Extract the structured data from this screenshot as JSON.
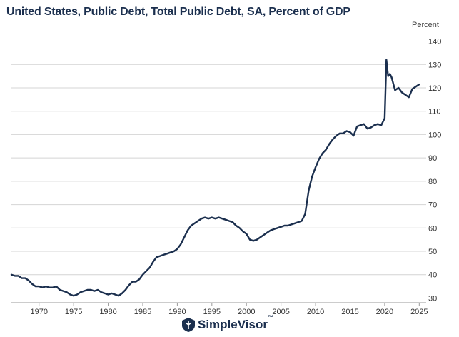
{
  "header": {
    "title": "United States, Public Debt, Total Public Debt, SA, Percent of GDP",
    "unit": "Percent"
  },
  "brand": {
    "name": "SimpleVisor",
    "trademark": "™",
    "icon": "simplevisor-logo-icon"
  },
  "colors": {
    "line": "#1b2f4e",
    "title": "#1b2f4e",
    "grid": "#d4d4d4"
  },
  "chart_data": {
    "type": "line",
    "title": "United States, Public Debt, Total Public Debt, SA, Percent of GDP",
    "ylabel": "Percent",
    "xlabel": "",
    "xlim": [
      1966,
      2026
    ],
    "ylim": [
      28,
      142
    ],
    "x_ticks": [
      1970,
      1975,
      1980,
      1985,
      1990,
      1995,
      2000,
      2005,
      2010,
      2015,
      2020,
      2025
    ],
    "y_ticks": [
      30,
      40,
      50,
      60,
      70,
      80,
      90,
      100,
      110,
      120,
      130,
      140
    ],
    "grid": true,
    "y_axis_position": "right",
    "legend": "none",
    "series": [
      {
        "x": [
          1966.0,
          1966.5,
          1967.0,
          1967.5,
          1968.0,
          1968.5,
          1969.0,
          1969.5,
          1970.0,
          1970.5,
          1971.0,
          1971.5,
          1972.0,
          1972.5,
          1973.0,
          1973.5,
          1974.0,
          1974.5,
          1975.0,
          1975.5,
          1976.0,
          1976.5,
          1977.0,
          1977.5,
          1978.0,
          1978.5,
          1979.0,
          1979.5,
          1980.0,
          1980.5,
          1981.0,
          1981.5,
          1982.0,
          1982.5,
          1983.0,
          1983.5,
          1984.0,
          1984.5,
          1985.0,
          1985.5,
          1986.0,
          1986.5,
          1987.0,
          1987.5,
          1988.0,
          1988.5,
          1989.0,
          1989.5,
          1990.0,
          1990.5,
          1991.0,
          1991.5,
          1992.0,
          1992.5,
          1993.0,
          1993.5,
          1994.0,
          1994.5,
          1995.0,
          1995.5,
          1996.0,
          1996.5,
          1997.0,
          1997.5,
          1998.0,
          1998.5,
          1999.0,
          1999.5,
          2000.0,
          2000.5,
          2001.0,
          2001.5,
          2002.0,
          2002.5,
          2003.0,
          2003.5,
          2004.0,
          2004.5,
          2005.0,
          2005.5,
          2006.0,
          2006.5,
          2007.0,
          2007.5,
          2008.0,
          2008.5,
          2009.0,
          2009.5,
          2010.0,
          2010.5,
          2011.0,
          2011.5,
          2012.0,
          2012.5,
          2013.0,
          2013.5,
          2014.0,
          2014.5,
          2015.0,
          2015.5,
          2016.0,
          2016.5,
          2017.0,
          2017.5,
          2018.0,
          2018.5,
          2019.0,
          2019.5,
          2020.0,
          2020.25,
          2020.5,
          2020.75,
          2021.0,
          2021.5,
          2022.0,
          2022.5,
          2023.0,
          2023.5,
          2024.0,
          2024.5,
          2025.0
        ],
        "y": [
          40.0,
          39.5,
          39.5,
          38.5,
          38.5,
          37.5,
          36.0,
          35.0,
          35.0,
          34.5,
          35.0,
          34.5,
          34.5,
          35.0,
          33.5,
          33.0,
          32.5,
          31.5,
          31.0,
          31.5,
          32.5,
          33.0,
          33.5,
          33.5,
          33.0,
          33.5,
          32.5,
          32.0,
          31.5,
          32.0,
          31.5,
          31.0,
          32.0,
          33.5,
          35.5,
          37.0,
          37.0,
          38.0,
          40.0,
          41.5,
          43.0,
          45.5,
          47.5,
          48.0,
          48.5,
          49.0,
          49.5,
          50.0,
          51.0,
          53.0,
          56.0,
          59.0,
          61.0,
          62.0,
          63.0,
          64.0,
          64.5,
          64.0,
          64.5,
          64.0,
          64.5,
          64.0,
          63.5,
          63.0,
          62.5,
          61.0,
          60.0,
          58.5,
          57.5,
          55.0,
          54.5,
          55.0,
          56.0,
          57.0,
          58.0,
          59.0,
          59.5,
          60.0,
          60.5,
          61.0,
          61.0,
          61.5,
          62.0,
          62.5,
          63.0,
          66.0,
          76.0,
          82.0,
          86.0,
          89.5,
          92.0,
          93.5,
          96.0,
          98.0,
          99.5,
          100.5,
          100.5,
          101.5,
          101.0,
          99.5,
          103.5,
          104.0,
          104.5,
          102.5,
          103.0,
          104.0,
          104.5,
          104.0,
          107.0,
          132.0,
          125.0,
          126.0,
          124.5,
          119.0,
          120.0,
          118.0,
          117.0,
          116.0,
          119.5,
          120.5,
          121.5
        ]
      }
    ]
  }
}
